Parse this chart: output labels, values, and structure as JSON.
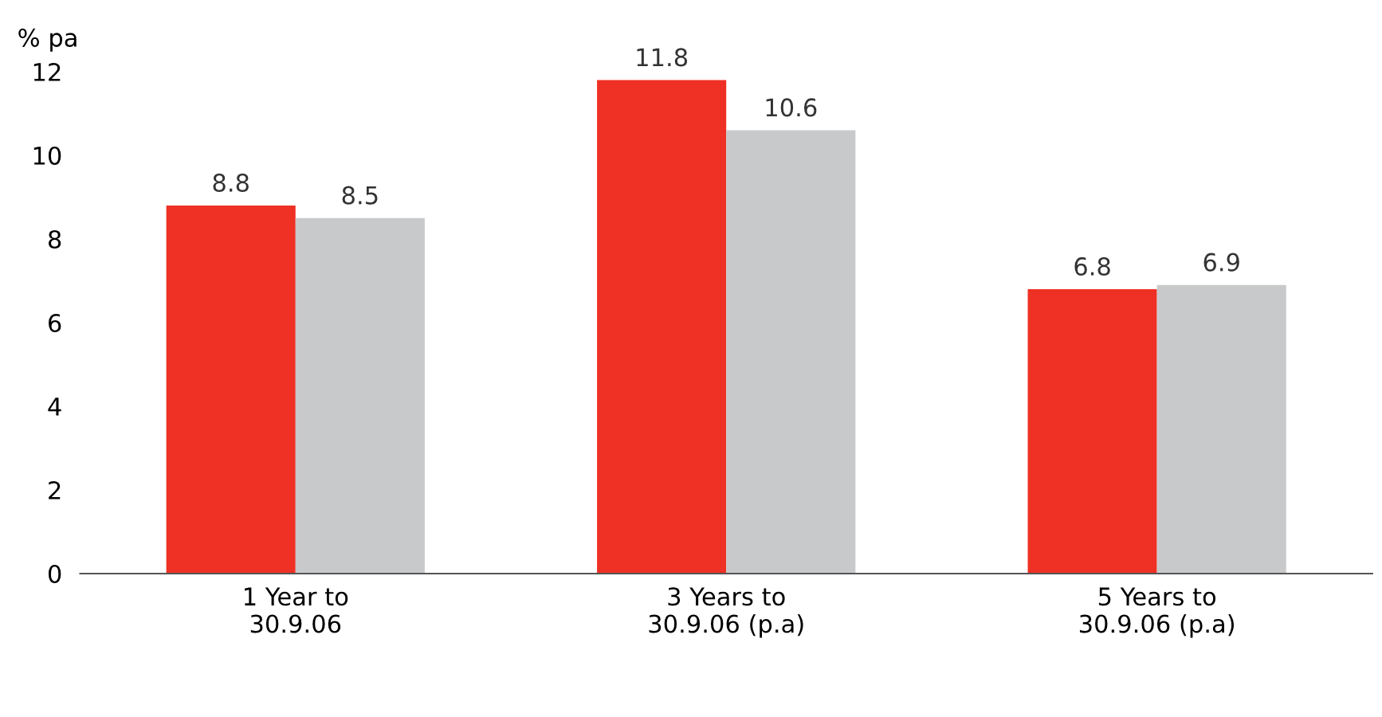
{
  "chart_data": {
    "type": "bar",
    "ylabel": "% pa",
    "categories": [
      "1 Year to\n30.9.06",
      "3 Years to\n30.9.06 (p.a)",
      "5 Years to\n30.9.06 (p.a)"
    ],
    "series": [
      {
        "color": "#ee3124",
        "values": [
          8.8,
          11.8,
          6.8
        ]
      },
      {
        "color": "#c8c9cb",
        "values": [
          8.5,
          10.6,
          6.9
        ]
      }
    ],
    "ylim": [
      0,
      12
    ],
    "yticks": [
      0,
      2,
      4,
      6,
      8,
      10,
      12
    ],
    "grid": false,
    "data_labels": true
  }
}
